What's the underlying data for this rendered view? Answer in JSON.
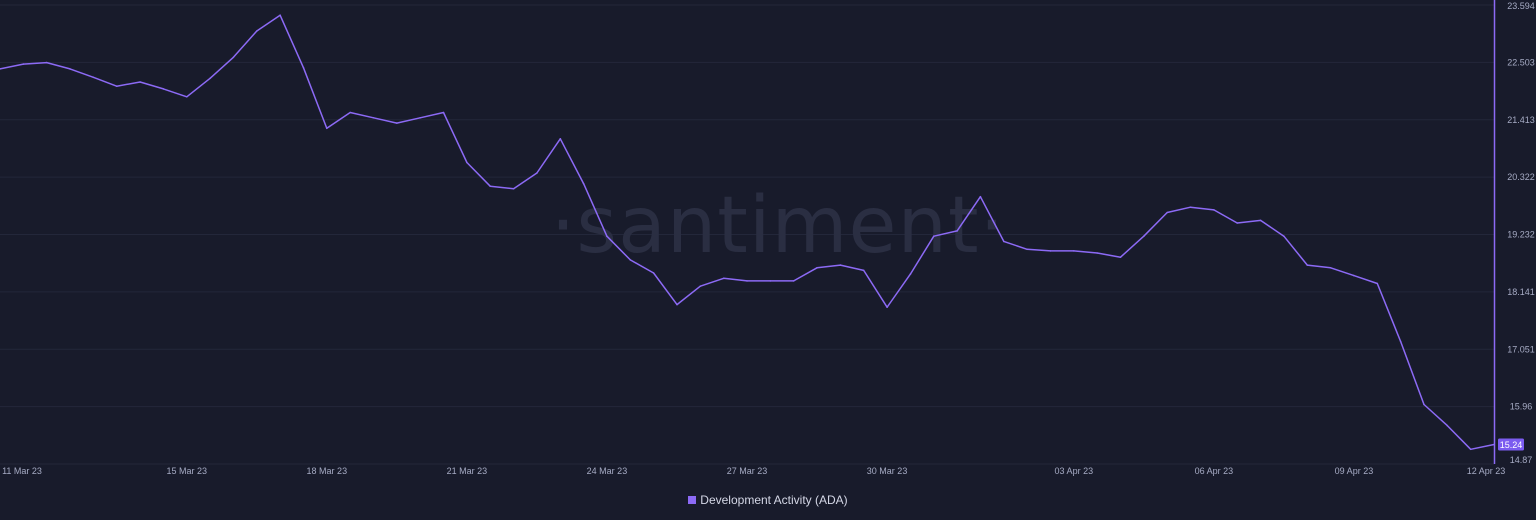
{
  "watermark": "·santiment·",
  "colors": {
    "background": "#181b2b",
    "line": "#8c6af5",
    "axis": "#8c6af5",
    "grid": "#23273a",
    "badge": "#7b5cf0"
  },
  "chart_data": {
    "type": "line",
    "title": "",
    "xlabel": "",
    "ylabel": "",
    "ylim": [
      14.87,
      23.594
    ],
    "y_axis_position": "right",
    "grid": true,
    "legend_placement": "bottom-center",
    "x_ticks": [
      "11 Mar 23",
      "15 Mar 23",
      "18 Mar 23",
      "21 Mar 23",
      "24 Mar 23",
      "27 Mar 23",
      "30 Mar 23",
      "03 Apr 23",
      "06 Apr 23",
      "09 Apr 23",
      "12 Apr 23"
    ],
    "y_ticks": [
      "23.594",
      "22.503",
      "21.413",
      "20.322",
      "19.232",
      "18.141",
      "17.051",
      "15.96",
      "14.87"
    ],
    "current_value_label": "15.24",
    "series": [
      {
        "name": "Development Activity (ADA)",
        "color": "#8c6af5",
        "x": [
          "2023-03-11",
          "2023-03-11T12:00",
          "2023-03-12",
          "2023-03-12T12:00",
          "2023-03-13",
          "2023-03-13T12:00",
          "2023-03-14",
          "2023-03-14T12:00",
          "2023-03-15",
          "2023-03-15T12:00",
          "2023-03-16",
          "2023-03-16T12:00",
          "2023-03-17",
          "2023-03-17T12:00",
          "2023-03-18",
          "2023-03-18T12:00",
          "2023-03-19",
          "2023-03-19T12:00",
          "2023-03-20",
          "2023-03-20T12:00",
          "2023-03-21",
          "2023-03-21T12:00",
          "2023-03-22",
          "2023-03-22T12:00",
          "2023-03-23",
          "2023-03-23T12:00",
          "2023-03-24",
          "2023-03-24T12:00",
          "2023-03-25",
          "2023-03-25T12:00",
          "2023-03-26",
          "2023-03-26T12:00",
          "2023-03-27",
          "2023-03-27T12:00",
          "2023-03-28",
          "2023-03-28T12:00",
          "2023-03-29",
          "2023-03-29T12:00",
          "2023-03-30",
          "2023-03-30T12:00",
          "2023-03-31",
          "2023-03-31T12:00",
          "2023-04-01",
          "2023-04-01T12:00",
          "2023-04-02",
          "2023-04-02T12:00",
          "2023-04-03",
          "2023-04-03T12:00",
          "2023-04-04",
          "2023-04-04T12:00",
          "2023-04-05",
          "2023-04-05T12:00",
          "2023-04-06",
          "2023-04-06T12:00",
          "2023-04-07",
          "2023-04-07T12:00",
          "2023-04-08",
          "2023-04-08T12:00",
          "2023-04-09",
          "2023-04-09T12:00",
          "2023-04-10",
          "2023-04-10T12:00",
          "2023-04-11",
          "2023-04-11T12:00",
          "2023-04-12"
        ],
        "values": [
          22.38,
          22.47,
          22.5,
          22.38,
          22.22,
          22.05,
          22.13,
          22.0,
          21.85,
          22.2,
          22.6,
          23.1,
          23.4,
          22.4,
          21.25,
          21.55,
          21.45,
          21.35,
          21.45,
          21.55,
          20.6,
          20.15,
          20.1,
          20.4,
          21.05,
          20.2,
          19.2,
          18.75,
          18.5,
          17.9,
          18.25,
          18.4,
          18.35,
          18.35,
          18.35,
          18.6,
          18.65,
          18.55,
          17.85,
          18.48,
          19.2,
          19.3,
          19.95,
          19.1,
          18.95,
          18.92,
          18.92,
          18.88,
          18.8,
          19.2,
          19.65,
          19.75,
          19.7,
          19.45,
          19.5,
          19.2,
          18.65,
          18.6,
          18.45,
          18.3,
          17.2,
          16.0,
          15.6,
          15.15,
          15.24
        ]
      }
    ]
  }
}
